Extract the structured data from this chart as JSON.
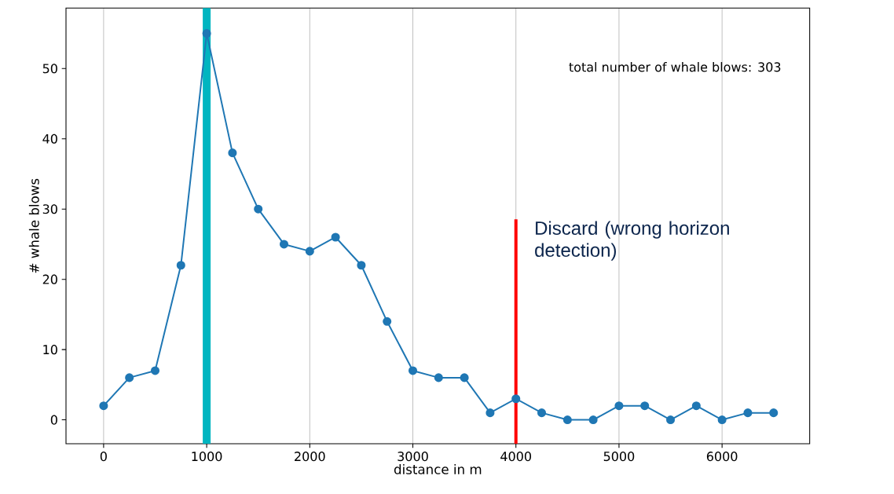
{
  "chart_data": {
    "type": "line",
    "xlabel": "distance in m",
    "ylabel": "# whale blows",
    "x": [
      0,
      250,
      500,
      750,
      1000,
      1250,
      1500,
      1750,
      2000,
      2250,
      2500,
      2750,
      3000,
      3250,
      3500,
      3750,
      4000,
      4250,
      4500,
      4750,
      5000,
      5250,
      5500,
      5750,
      6000,
      6250,
      6500
    ],
    "series": [
      {
        "color": "#1f77b4",
        "values": [
          2,
          6,
          7,
          22,
          55,
          38,
          30,
          25,
          24,
          26,
          22,
          14,
          7,
          6,
          6,
          1,
          3,
          1,
          0,
          0,
          2,
          2,
          0,
          2,
          0,
          1,
          1
        ]
      }
    ],
    "xlim": [
      -365,
      6850
    ],
    "ylim": [
      -3.4,
      58.6
    ],
    "xticks": [
      0,
      1000,
      2000,
      3000,
      4000,
      5000,
      6000
    ],
    "yticks": [
      0,
      10,
      20,
      30,
      40,
      50
    ],
    "grid": "x",
    "marker": "circle",
    "line_style": "solid",
    "ref_lines": [
      {
        "axis": "x",
        "value": 1000,
        "color": "#00b5c0"
      },
      {
        "axis": "x",
        "value": 4000,
        "color": "#ff0000",
        "label": "Discard (wrong horizon detection)"
      }
    ],
    "annotations": [
      "total number of whale blows:  303"
    ]
  }
}
